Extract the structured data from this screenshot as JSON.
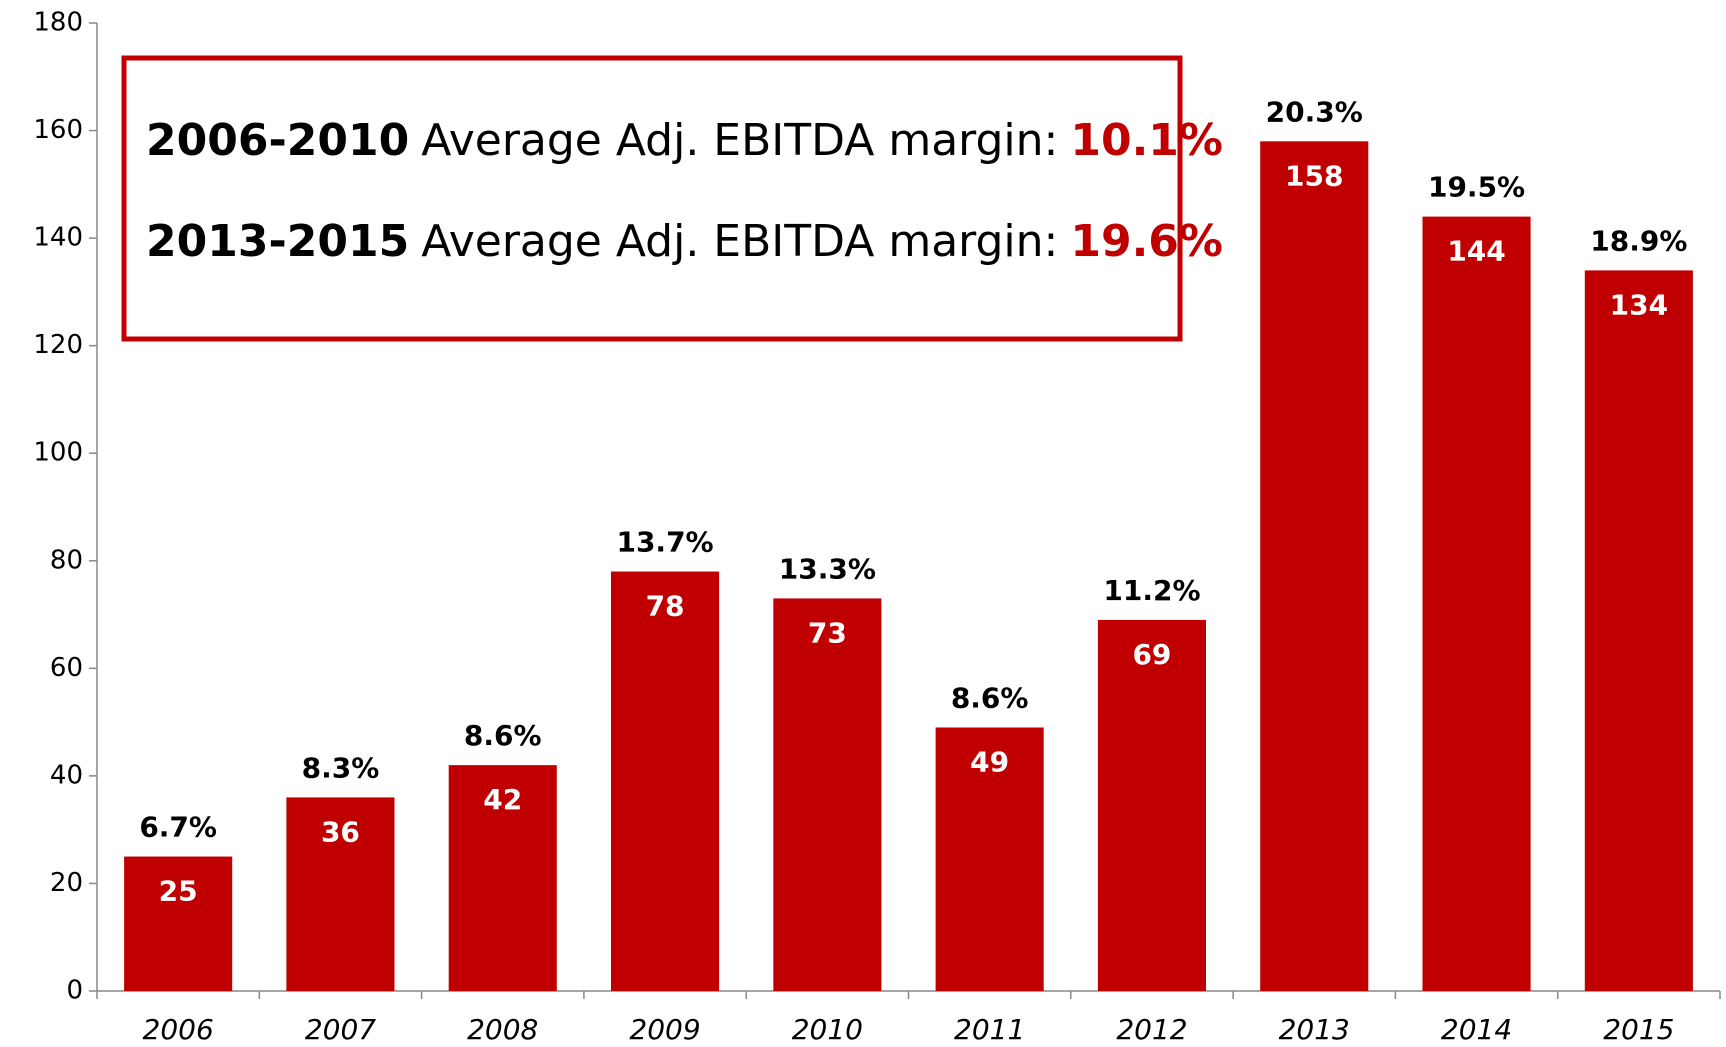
{
  "chart_data": {
    "type": "bar",
    "categories": [
      "2006",
      "2007",
      "2008",
      "2009",
      "2010",
      "2011",
      "2012",
      "2013",
      "2014",
      "2015"
    ],
    "values": [
      25,
      36,
      42,
      78,
      73,
      49,
      69,
      158,
      144,
      134
    ],
    "margins": [
      6.7,
      8.3,
      8.6,
      13.7,
      13.3,
      8.6,
      11.2,
      20.3,
      19.5,
      18.9
    ],
    "margin_labels": [
      "6.7%",
      "8.3%",
      "8.6%",
      "13.7%",
      "13.3%",
      "8.6%",
      "11.2%",
      "20.3%",
      "19.5%",
      "18.9%"
    ],
    "color": "#c00000",
    "ylim": [
      0,
      180
    ],
    "yticks": [
      0,
      20,
      40,
      60,
      80,
      100,
      120,
      140,
      160,
      180
    ],
    "annotations": [
      {
        "period": "2006-2010",
        "text": "Average Adj. EBITDA margin:",
        "value": 10.1,
        "label": "10.1%"
      },
      {
        "period": "2013-2015",
        "text": "Average Adj. EBITDA margin:",
        "value": 19.6,
        "label": "19.6%"
      }
    ]
  }
}
